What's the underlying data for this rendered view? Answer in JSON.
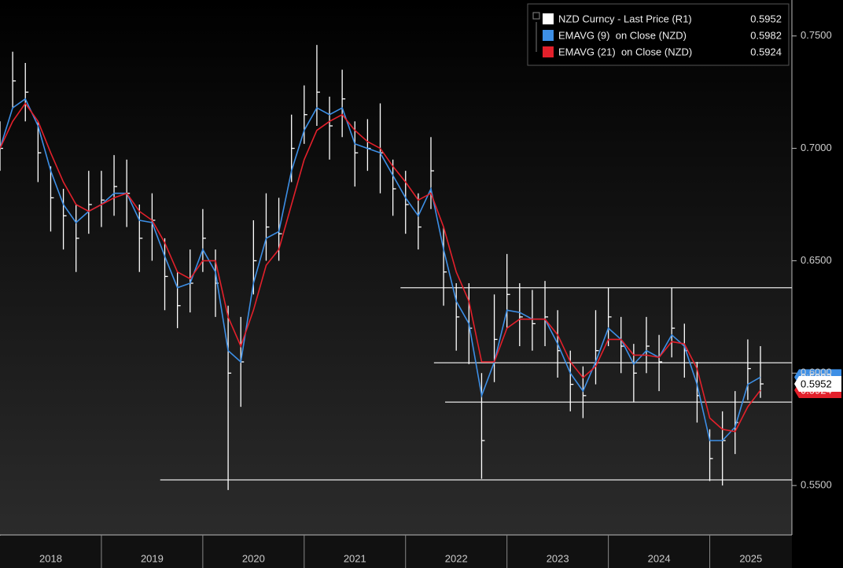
{
  "chart_data": {
    "type": "line",
    "x": [
      2018.0,
      2018.125,
      2018.25,
      2018.375,
      2018.5,
      2018.625,
      2018.75,
      2018.875,
      2019.0,
      2019.125,
      2019.25,
      2019.375,
      2019.5,
      2019.625,
      2019.75,
      2019.875,
      2020.0,
      2020.125,
      2020.25,
      2020.375,
      2020.5,
      2020.625,
      2020.75,
      2020.875,
      2021.0,
      2021.125,
      2021.25,
      2021.375,
      2021.5,
      2021.625,
      2021.75,
      2021.875,
      2022.0,
      2022.125,
      2022.25,
      2022.375,
      2022.5,
      2022.625,
      2022.75,
      2022.875,
      2023.0,
      2023.125,
      2023.25,
      2023.375,
      2023.5,
      2023.625,
      2023.75,
      2023.875,
      2024.0,
      2024.125,
      2024.25,
      2024.375,
      2024.5,
      2024.625,
      2024.75,
      2024.875,
      2025.0,
      2025.125,
      2025.25,
      2025.375,
      2025.5
    ],
    "series": [
      {
        "name": "NZD Curncy - Last Price (R1)",
        "color": "#ffffff",
        "values": [
          0.7,
          0.73,
          0.725,
          0.698,
          0.678,
          0.67,
          0.66,
          0.675,
          0.677,
          0.683,
          0.68,
          0.66,
          0.668,
          0.643,
          0.63,
          0.64,
          0.66,
          0.64,
          0.6,
          0.605,
          0.65,
          0.665,
          0.662,
          0.7,
          0.715,
          0.725,
          0.71,
          0.722,
          0.698,
          0.7,
          0.698,
          0.682,
          0.675,
          0.665,
          0.69,
          0.645,
          0.625,
          0.62,
          0.57,
          0.615,
          0.635,
          0.625,
          0.622,
          0.625,
          0.61,
          0.595,
          0.59,
          0.61,
          0.625,
          0.612,
          0.6,
          0.612,
          0.605,
          0.62,
          0.61,
          0.59,
          0.562,
          0.57,
          0.578,
          0.602,
          0.5952
        ],
        "high": [
          0.712,
          0.743,
          0.738,
          0.712,
          0.692,
          0.682,
          0.675,
          0.69,
          0.69,
          0.697,
          0.695,
          0.675,
          0.68,
          0.66,
          0.645,
          0.655,
          0.673,
          0.655,
          0.63,
          0.625,
          0.668,
          0.68,
          0.678,
          0.715,
          0.728,
          0.746,
          0.723,
          0.735,
          0.712,
          0.713,
          0.72,
          0.695,
          0.69,
          0.68,
          0.705,
          0.665,
          0.64,
          0.64,
          0.6,
          0.635,
          0.653,
          0.64,
          0.637,
          0.641,
          0.628,
          0.61,
          0.603,
          0.628,
          0.638,
          0.625,
          0.613,
          0.625,
          0.617,
          0.638,
          0.622,
          0.605,
          0.575,
          0.583,
          0.592,
          0.615,
          0.612
        ],
        "low": [
          0.69,
          0.718,
          0.712,
          0.685,
          0.663,
          0.655,
          0.645,
          0.662,
          0.665,
          0.67,
          0.665,
          0.645,
          0.65,
          0.628,
          0.62,
          0.627,
          0.645,
          0.625,
          0.548,
          0.585,
          0.635,
          0.65,
          0.65,
          0.685,
          0.702,
          0.71,
          0.695,
          0.705,
          0.683,
          0.69,
          0.68,
          0.67,
          0.662,
          0.655,
          0.673,
          0.63,
          0.61,
          0.604,
          0.553,
          0.596,
          0.62,
          0.612,
          0.61,
          0.612,
          0.598,
          0.583,
          0.58,
          0.595,
          0.612,
          0.6,
          0.587,
          0.6,
          0.592,
          0.607,
          0.598,
          0.578,
          0.552,
          0.55,
          0.564,
          0.588,
          0.589
        ]
      },
      {
        "name": "EMAVG (9)  on Close (NZD)",
        "color": "#3d8fe6",
        "values": [
          0.7,
          0.718,
          0.722,
          0.71,
          0.69,
          0.675,
          0.667,
          0.672,
          0.675,
          0.68,
          0.68,
          0.668,
          0.667,
          0.652,
          0.638,
          0.64,
          0.655,
          0.645,
          0.61,
          0.605,
          0.64,
          0.66,
          0.663,
          0.69,
          0.708,
          0.718,
          0.715,
          0.718,
          0.702,
          0.7,
          0.698,
          0.688,
          0.678,
          0.67,
          0.682,
          0.655,
          0.632,
          0.622,
          0.59,
          0.605,
          0.628,
          0.627,
          0.624,
          0.624,
          0.613,
          0.6,
          0.592,
          0.605,
          0.62,
          0.615,
          0.604,
          0.61,
          0.607,
          0.617,
          0.612,
          0.595,
          0.57,
          0.57,
          0.576,
          0.595,
          0.5982
        ]
      },
      {
        "name": "EMAVG (21)  on Close (NZD)",
        "color": "#e3202b",
        "values": [
          0.7,
          0.712,
          0.72,
          0.712,
          0.698,
          0.685,
          0.675,
          0.672,
          0.675,
          0.678,
          0.68,
          0.672,
          0.668,
          0.658,
          0.645,
          0.642,
          0.65,
          0.65,
          0.625,
          0.612,
          0.628,
          0.648,
          0.655,
          0.675,
          0.695,
          0.708,
          0.712,
          0.715,
          0.708,
          0.703,
          0.7,
          0.692,
          0.685,
          0.677,
          0.68,
          0.665,
          0.645,
          0.632,
          0.605,
          0.605,
          0.62,
          0.624,
          0.624,
          0.624,
          0.617,
          0.605,
          0.598,
          0.603,
          0.615,
          0.615,
          0.608,
          0.608,
          0.607,
          0.614,
          0.613,
          0.602,
          0.58,
          0.575,
          0.574,
          0.585,
          0.5924
        ]
      }
    ],
    "reference_lines": [
      {
        "value": 0.638,
        "x_start": 2021.95
      },
      {
        "value": 0.6046,
        "x_start": 2022.28
      },
      {
        "value": 0.5871,
        "x_start": 2022.39
      },
      {
        "value": 0.5525,
        "x_start": 2019.58
      }
    ],
    "xlim": [
      2018,
      2025.81
    ],
    "xticks": [
      {
        "value": 2018,
        "label": "2018"
      },
      {
        "value": 2019,
        "label": "2019"
      },
      {
        "value": 2020,
        "label": "2020"
      },
      {
        "value": 2021,
        "label": "2021"
      },
      {
        "value": 2022,
        "label": "2022"
      },
      {
        "value": 2023,
        "label": "2023"
      },
      {
        "value": 2024,
        "label": "2024"
      },
      {
        "value": 2025,
        "label": "2025"
      }
    ],
    "ylim": [
      0.528,
      0.766
    ],
    "yticks": [
      {
        "value": 0.55,
        "label": "0.5500"
      },
      {
        "value": 0.6,
        "label": "0.6000"
      },
      {
        "value": 0.65,
        "label": "0.6500"
      },
      {
        "value": 0.7,
        "label": "0.7000"
      },
      {
        "value": 0.75,
        "label": "0.7500"
      }
    ]
  }
}
